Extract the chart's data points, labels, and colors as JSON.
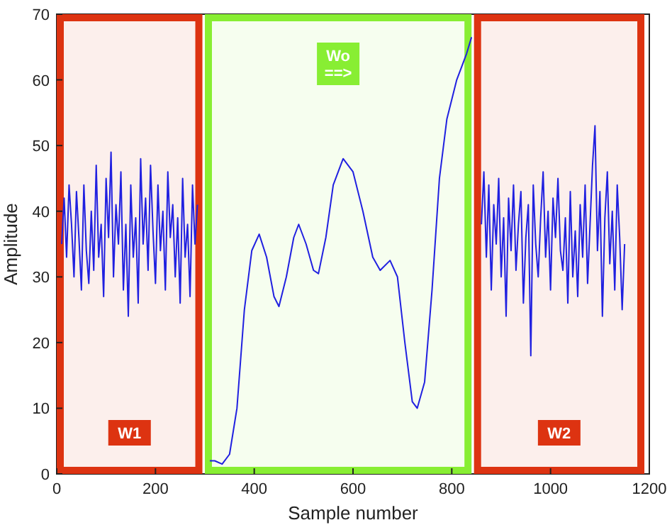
{
  "chart_data": {
    "type": "line",
    "xlabel": "Sample number",
    "ylabel": "Amplitude",
    "xlim": [
      0,
      1200
    ],
    "ylim": [
      0,
      70
    ],
    "xticks": [
      0,
      200,
      400,
      600,
      800,
      1000,
      1200
    ],
    "yticks": [
      0,
      10,
      20,
      30,
      40,
      50,
      60,
      70
    ],
    "line_style": "solid",
    "series": [
      {
        "color": "#2020e0",
        "x": [
          10,
          15,
          20,
          25,
          30,
          35,
          40,
          45,
          50,
          55,
          60,
          65,
          70,
          75,
          80,
          85,
          90,
          95,
          100,
          105,
          110,
          115,
          120,
          125,
          130,
          135,
          140,
          145,
          150,
          155,
          160,
          165,
          170,
          175,
          180,
          185,
          190,
          195,
          200,
          205,
          210,
          215,
          220,
          225,
          230,
          235,
          240,
          245,
          250,
          255,
          260,
          265,
          270,
          275,
          280,
          285
        ],
        "values": [
          35,
          42,
          33,
          44,
          38,
          30,
          43,
          36,
          28,
          44,
          34,
          29,
          40,
          31,
          47,
          33,
          38,
          27,
          45,
          36,
          49,
          30,
          41,
          35,
          46,
          28,
          38,
          24,
          44,
          33,
          39,
          26,
          48,
          35,
          42,
          31,
          47,
          37,
          29,
          44,
          34,
          40,
          28,
          46,
          36,
          41,
          30,
          39,
          26,
          45,
          33,
          38,
          27,
          44,
          35,
          41
        ]
      },
      {
        "color": "#2020e0",
        "x": [
          310,
          320,
          335,
          350,
          365,
          380,
          395,
          410,
          425,
          440,
          450,
          465,
          480,
          490,
          505,
          520,
          530,
          545,
          560,
          580,
          600,
          620,
          640,
          655,
          675,
          690,
          705,
          720,
          730,
          745,
          760,
          775,
          790,
          810,
          830,
          840
        ],
        "values": [
          2,
          2,
          1.5,
          3,
          10,
          25,
          34,
          36.5,
          33,
          27,
          25.5,
          30,
          36,
          38,
          35,
          31,
          30.5,
          36,
          44,
          48,
          46,
          40,
          33,
          31,
          32.5,
          30,
          20,
          11,
          10,
          14,
          28,
          45,
          54,
          60,
          64,
          66.5
        ]
      },
      {
        "color": "#2020e0",
        "x": [
          860,
          865,
          870,
          875,
          880,
          885,
          890,
          895,
          900,
          905,
          910,
          915,
          920,
          925,
          930,
          935,
          940,
          945,
          950,
          955,
          960,
          965,
          970,
          975,
          980,
          985,
          990,
          995,
          1000,
          1005,
          1010,
          1015,
          1020,
          1025,
          1030,
          1035,
          1040,
          1045,
          1050,
          1055,
          1060,
          1065,
          1070,
          1075,
          1080,
          1085,
          1090,
          1095,
          1100,
          1105,
          1110,
          1115,
          1120,
          1125,
          1130,
          1135,
          1140,
          1145,
          1150
        ],
        "values": [
          38,
          46,
          33,
          44,
          28,
          41,
          35,
          45,
          30,
          39,
          24,
          42,
          34,
          44,
          31,
          38,
          43,
          26,
          36,
          41,
          18,
          44,
          35,
          30,
          39,
          46,
          33,
          40,
          28,
          42,
          36,
          45,
          34,
          31,
          39,
          26,
          43,
          30,
          37,
          27,
          41,
          33,
          44,
          29,
          38,
          47,
          53,
          34,
          43,
          24,
          39,
          46,
          32,
          40,
          28,
          44,
          36,
          25,
          35
        ]
      }
    ],
    "bands": [
      {
        "axis": "x",
        "from": 0,
        "to": 295,
        "label": "W1",
        "color": "#dd3311"
      },
      {
        "axis": "x",
        "from": 300,
        "to": 840,
        "label": "Wo ==>",
        "color": "#88ee33"
      },
      {
        "axis": "x",
        "from": 845,
        "to": 1190,
        "label": "W2",
        "color": "#dd3311"
      }
    ]
  }
}
